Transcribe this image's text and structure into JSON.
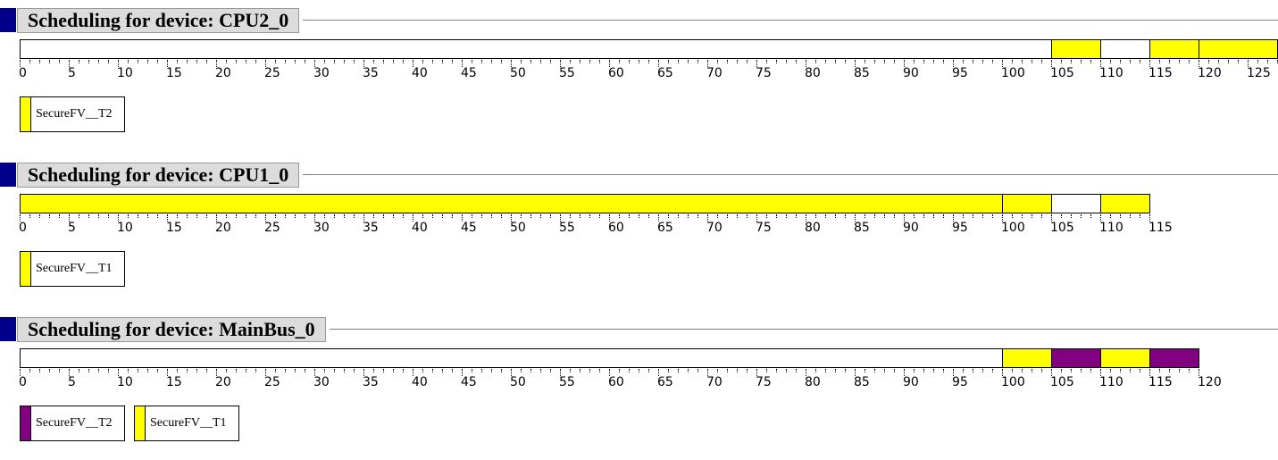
{
  "colors": {
    "yellow": "#ffff00",
    "purple": "#800080",
    "empty": "#ffffff",
    "accent": "#00008b"
  },
  "sections": [
    {
      "title": "Scheduling for device: CPU2_0",
      "max_tick": 125,
      "segments": [
        {
          "from": 0,
          "to": 105,
          "color": "empty"
        },
        {
          "from": 105,
          "to": 110,
          "color": "yellow"
        },
        {
          "from": 110,
          "to": 115,
          "color": "empty"
        },
        {
          "from": 115,
          "to": 120,
          "color": "yellow"
        },
        {
          "from": 120,
          "to": 128,
          "color": "yellow"
        }
      ],
      "legend": [
        {
          "label": "SecureFV__T2",
          "color": "yellow"
        }
      ]
    },
    {
      "title": "Scheduling for device: CPU1_0",
      "max_tick": 115,
      "segments": [
        {
          "from": 0,
          "to": 100,
          "color": "yellow"
        },
        {
          "from": 100,
          "to": 105,
          "color": "yellow"
        },
        {
          "from": 105,
          "to": 110,
          "color": "empty"
        },
        {
          "from": 110,
          "to": 115,
          "color": "yellow"
        }
      ],
      "legend": [
        {
          "label": "SecureFV__T1",
          "color": "yellow"
        }
      ]
    },
    {
      "title": "Scheduling for device: MainBus_0",
      "max_tick": 120,
      "segments": [
        {
          "from": 0,
          "to": 100,
          "color": "empty"
        },
        {
          "from": 100,
          "to": 105,
          "color": "yellow"
        },
        {
          "from": 105,
          "to": 110,
          "color": "purple"
        },
        {
          "from": 110,
          "to": 115,
          "color": "yellow"
        },
        {
          "from": 115,
          "to": 120,
          "color": "purple"
        }
      ],
      "legend": [
        {
          "label": "SecureFV__T2",
          "color": "purple"
        },
        {
          "label": "SecureFV__T1",
          "color": "yellow"
        }
      ]
    }
  ]
}
